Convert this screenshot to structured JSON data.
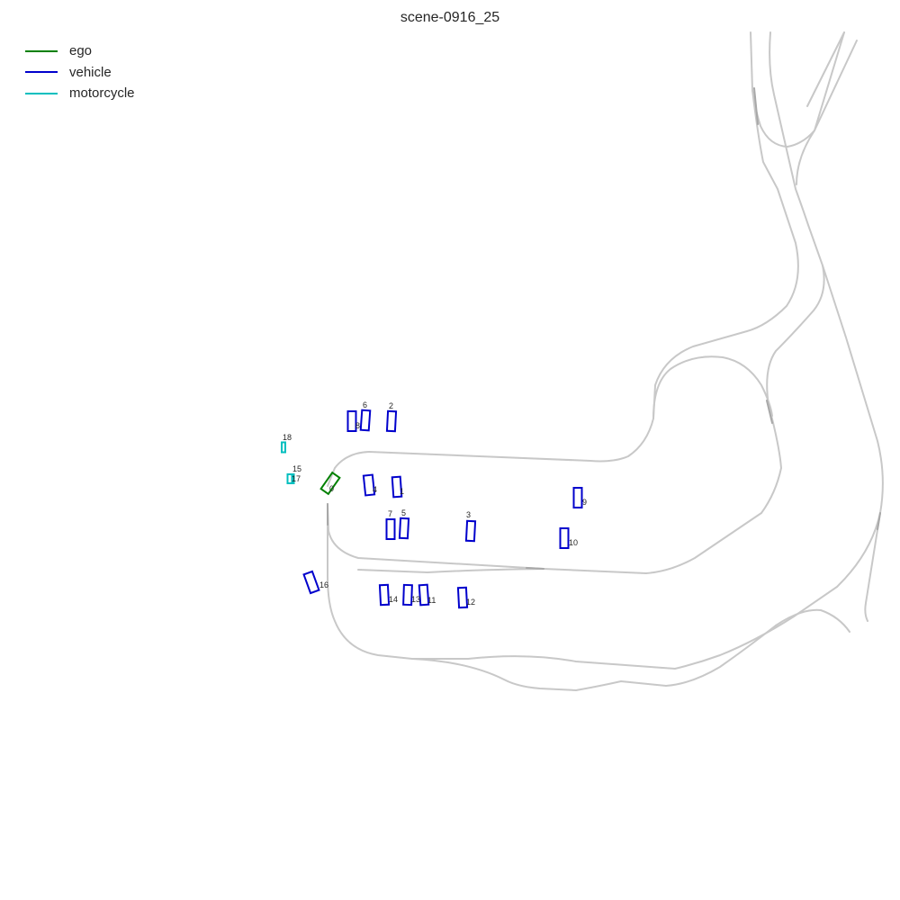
{
  "title": "scene-0916_25",
  "legend": [
    {
      "label": "ego",
      "color": "#008000"
    },
    {
      "label": "vehicle",
      "color": "#0000cc"
    },
    {
      "label": "motorcycle",
      "color": "#00bfbf"
    }
  ],
  "colors": {
    "ego": "#008000",
    "vehicle": "#0000cc",
    "motorcycle": "#00bfbf",
    "road": "#c8c8c8"
  },
  "agents": [
    {
      "id": "0",
      "category": "ego"
    },
    {
      "id": "1",
      "category": "vehicle"
    },
    {
      "id": "2",
      "category": "vehicle"
    },
    {
      "id": "3",
      "category": "vehicle"
    },
    {
      "id": "4",
      "category": "vehicle"
    },
    {
      "id": "5",
      "category": "vehicle"
    },
    {
      "id": "6",
      "category": "vehicle"
    },
    {
      "id": "7",
      "category": "vehicle"
    },
    {
      "id": "8",
      "category": "vehicle"
    },
    {
      "id": "9",
      "category": "vehicle"
    },
    {
      "id": "10",
      "category": "vehicle"
    },
    {
      "id": "11",
      "category": "vehicle"
    },
    {
      "id": "12",
      "category": "vehicle"
    },
    {
      "id": "13",
      "category": "vehicle"
    },
    {
      "id": "14",
      "category": "vehicle"
    },
    {
      "id": "15",
      "category": "motorcycle"
    },
    {
      "id": "16",
      "category": "vehicle"
    },
    {
      "id": "17",
      "category": "motorcycle"
    },
    {
      "id": "18",
      "category": "motorcycle"
    }
  ]
}
